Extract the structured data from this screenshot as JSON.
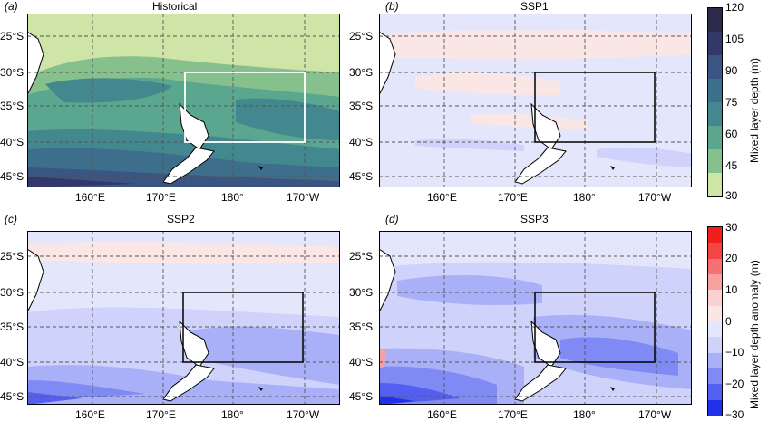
{
  "panels": [
    {
      "id": "a",
      "label": "(a)",
      "title": "Historical"
    },
    {
      "id": "b",
      "label": "(b)",
      "title": "SSP1"
    },
    {
      "id": "c",
      "label": "(c)",
      "title": "SSP2"
    },
    {
      "id": "d",
      "label": "(d)",
      "title": "SSP3"
    }
  ],
  "lat_ticks": [
    "25°S",
    "30°S",
    "35°S",
    "40°S",
    "45°S"
  ],
  "lon_ticks": [
    "160°E",
    "170°E",
    "180°",
    "170°W"
  ],
  "colorbar_depth": {
    "label": "Mixed layer depth (m)",
    "ticks": [
      "120",
      "105",
      "90",
      "75",
      "60",
      "45",
      "30"
    ],
    "colors": [
      "#2b2a4a",
      "#33386a",
      "#3a5582",
      "#3d6e8c",
      "#44888f",
      "#5aa68f",
      "#85c08d",
      "#cfe5a8"
    ]
  },
  "colorbar_anomaly": {
    "label": "Mixed layer depth anomaly (m)",
    "ticks": [
      "30",
      "20",
      "10",
      "0",
      "−10",
      "−20",
      "−30"
    ],
    "colors": [
      "#f21d1d",
      "#f44545",
      "#f67272",
      "#f8a0a0",
      "#fbd0d0",
      "#fbe6e6",
      "#e4e7fb",
      "#cfd3fb",
      "#a9b0f8",
      "#7f8af4",
      "#525ff0",
      "#2131ea"
    ]
  }
}
